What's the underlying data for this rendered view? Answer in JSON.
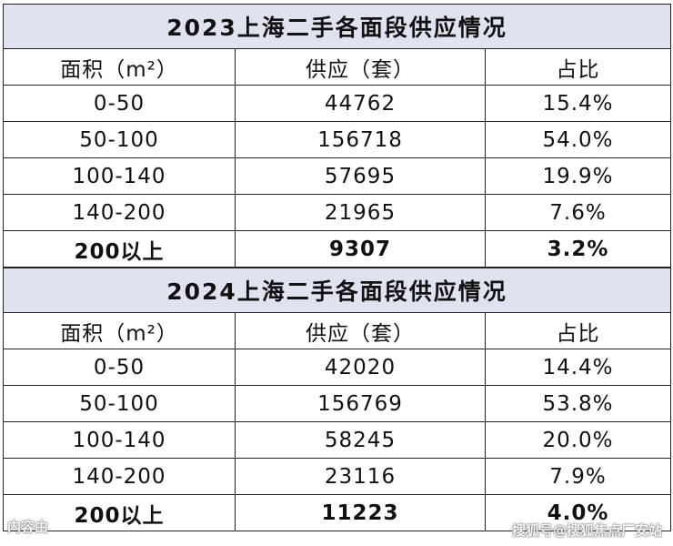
{
  "tables": [
    {
      "title": "2023上海二手各面段供应情况",
      "header": [
        "面积（m²）",
        "供应（套）",
        "占比"
      ],
      "rows": [
        [
          "0-50",
          "44762",
          "15.4%"
        ],
        [
          "50-100",
          "156718",
          "54.0%"
        ],
        [
          "100-140",
          "57695",
          "19.9%"
        ],
        [
          "140-200",
          "21965",
          "7.6%"
        ],
        [
          "200以上",
          "9307",
          "3.2%"
        ]
      ]
    },
    {
      "title": "2024上海二手各面段供应情况",
      "header": [
        "面积（m²）",
        "供应（套）",
        "占比"
      ],
      "rows": [
        [
          "0-50",
          "42020",
          "14.4%"
        ],
        [
          "50-100",
          "156769",
          "53.8%"
        ],
        [
          "100-140",
          "58245",
          "20.0%"
        ],
        [
          "140-200",
          "23116",
          "7.9%"
        ],
        [
          "200以上",
          "11223",
          "4.0%"
        ]
      ]
    }
  ],
  "watermarks": [
    "内容由",
    "搜狐号@搜狐焦点厂安站"
  ]
}
